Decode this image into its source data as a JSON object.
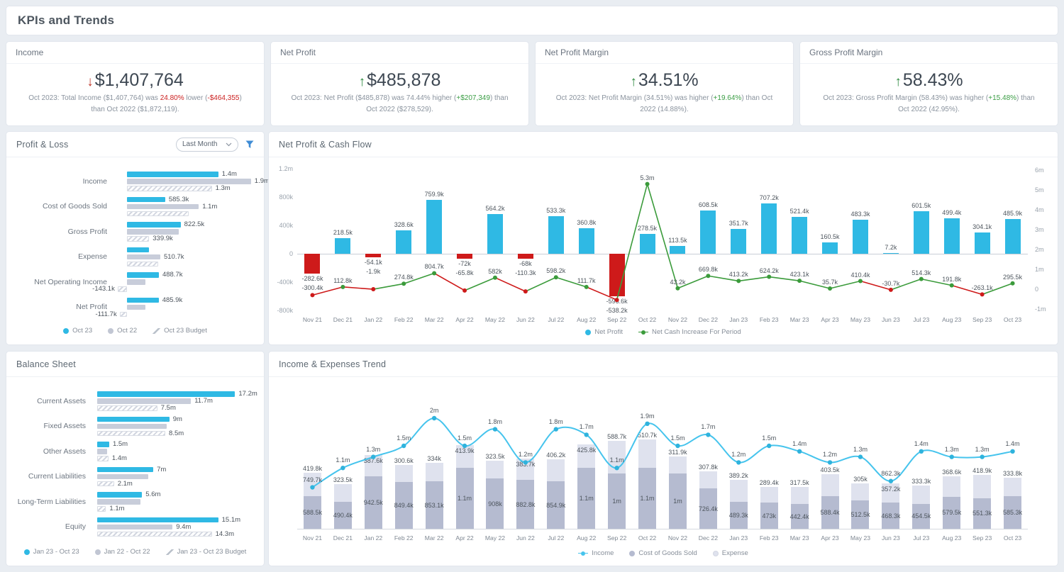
{
  "page": {
    "title": "KPIs and Trends"
  },
  "colors": {
    "bar_blue": "#2fb9e4",
    "bar_gray": "#c8cdda",
    "neg_red": "#ce1a1a",
    "line_green": "#3b9b3b",
    "line_blue": "#46c4ed",
    "cogs_gray": "#b5bbd0",
    "expense_gray": "#dfe2ee",
    "kpi_up": "#2e8b40",
    "kpi_down": "#c0392b",
    "filter_blue": "#3f8cd5"
  },
  "kpis": [
    {
      "title": "Income",
      "direction": "down",
      "value": "$1,407,764",
      "desc": [
        {
          "t": "Oct 2023: Total Income ($1,407,764) was "
        },
        {
          "t": "24.80%",
          "c": "neg"
        },
        {
          "t": " lower ("
        },
        {
          "t": "-$464,355",
          "c": "neg"
        },
        {
          "t": ") than Oct 2022 ($1,872,119)."
        }
      ]
    },
    {
      "title": "Net Profit",
      "direction": "up",
      "value": "$485,878",
      "desc": [
        {
          "t": "Oct 2023: Net Profit ($485,878) was 74.44% higher ("
        },
        {
          "t": "+$207,349",
          "c": "pos"
        },
        {
          "t": ") than Oct 2022 ($278,529)."
        }
      ]
    },
    {
      "title": "Net Profit Margin",
      "direction": "up",
      "value": "34.51%",
      "desc": [
        {
          "t": "Oct 2023: Net Profit Margin (34.51%) was higher ("
        },
        {
          "t": "+19.64%",
          "c": "pos"
        },
        {
          "t": ") than Oct 2022 (14.88%)."
        }
      ]
    },
    {
      "title": "Gross Profit Margin",
      "direction": "up",
      "value": "58.43%",
      "desc": [
        {
          "t": "Oct 2023: Gross Profit Margin (58.43%) was higher ("
        },
        {
          "t": "+15.48%",
          "c": "pos"
        },
        {
          "t": ") than Oct 2022 (42.95%)."
        }
      ]
    }
  ],
  "pnl": {
    "title": "Profit & Loss",
    "dropdown_value": "Last Month",
    "legend": [
      "Oct 23",
      "Oct 22",
      "Oct 23 Budget"
    ]
  },
  "cashflow": {
    "title": "Net Profit & Cash Flow",
    "legend": [
      "Net Profit",
      "Net Cash Increase For Period"
    ]
  },
  "bs": {
    "title": "Balance Sheet",
    "legend": [
      "Jan 23 - Oct 23",
      "Jan 22 - Oct 22",
      "Jan 23 - Oct 23 Budget"
    ]
  },
  "trend": {
    "title": "Income & Expenses Trend",
    "legend": [
      "Income",
      "Cost of Goods Sold",
      "Expense"
    ]
  },
  "chart_data": [
    {
      "id": "pnl",
      "type": "bar",
      "orientation": "horizontal",
      "unit": "thousands",
      "series_names": [
        "Oct 23",
        "Oct 22",
        "Oct 23 Budget"
      ],
      "rows": [
        {
          "label": "Income",
          "values": [
            1400,
            1900,
            1300
          ],
          "labels": [
            "1.4m",
            "1.9m",
            "1.3m"
          ]
        },
        {
          "label": "Cost of Goods Sold",
          "values": [
            585.3,
            1100,
            950
          ],
          "labels": [
            "585.3k",
            "1.1m",
            ""
          ]
        },
        {
          "label": "Gross Profit",
          "values": [
            822.5,
            790,
            339.9
          ],
          "labels": [
            "822.5k",
            "",
            "339.9k"
          ]
        },
        {
          "label": "Expense",
          "values": [
            333.8,
            510.7,
            480
          ],
          "labels": [
            "",
            "510.7k",
            ""
          ]
        },
        {
          "label": "Net Operating Income",
          "values": [
            488.7,
            280,
            -143.1
          ],
          "labels": [
            "488.7k",
            "",
            "-143.1k"
          ]
        },
        {
          "label": "Net Profit",
          "values": [
            485.9,
            278.5,
            -111.7
          ],
          "labels": [
            "485.9k",
            "",
            "-111.7k"
          ]
        }
      ]
    },
    {
      "id": "cashflow",
      "type": "bar+line",
      "unit": "thousands",
      "categories": [
        "Nov 21",
        "Dec 21",
        "Jan 22",
        "Feb 22",
        "Mar 22",
        "Apr 22",
        "May 22",
        "Jun 22",
        "Jul 22",
        "Aug 22",
        "Sep 22",
        "Oct 22",
        "Nov 22",
        "Dec 22",
        "Jan 23",
        "Feb 23",
        "Mar 23",
        "Apr 23",
        "May 23",
        "Jun 23",
        "Jul 23",
        "Aug 23",
        "Sep 23",
        "Oct 23"
      ],
      "bar_series": "Net Profit",
      "bar_values": [
        -282.6,
        218.5,
        -54.1,
        328.6,
        759.9,
        -72,
        564.2,
        -68,
        533.3,
        360.8,
        -596.6,
        278.5,
        113.5,
        608.5,
        351.7,
        707.2,
        521.4,
        160.5,
        483.3,
        7.2,
        601.5,
        499.4,
        304.1,
        485.9
      ],
      "bar_labels": [
        "-282.6k",
        "218.5k",
        "-54.1k",
        "328.6k",
        "759.9k",
        "-72k",
        "564.2k",
        "-68k",
        "533.3k",
        "360.8k",
        "-596.6k",
        "278.5k",
        "113.5k",
        "608.5k",
        "351.7k",
        "707.2k",
        "521.4k",
        "160.5k",
        "483.3k",
        "7.2k",
        "601.5k",
        "499.4k",
        "304.1k",
        "485.9k"
      ],
      "line_series": "Net Cash Increase For Period",
      "line_values": [
        -300.4,
        112.8,
        -1.9,
        274.8,
        804.7,
        -65.8,
        582,
        -110.3,
        598.2,
        111.7,
        -538.2,
        5300,
        43.2,
        669.8,
        413.2,
        624.2,
        423.1,
        35.7,
        410.4,
        -30.7,
        514.3,
        191.8,
        -263.1,
        295.5
      ],
      "line_labels": [
        "-300.4k",
        "112.8k",
        "-1.9k",
        "274.8k",
        "804.7k",
        "-65.8k",
        "582k",
        "-110.3k",
        "598.2k",
        "111.7k",
        "-538.2k",
        "5.3m",
        "43.2k",
        "669.8k",
        "413.2k",
        "624.2k",
        "423.1k",
        "35.7k",
        "410.4k",
        "-30.7k",
        "514.3k",
        "191.8k",
        "-263.1k",
        "295.5k"
      ],
      "left_axis": {
        "ticks": [
          1200,
          800,
          400,
          0,
          -400,
          -800
        ],
        "labels": [
          "1.2m",
          "800k",
          "400k",
          "0",
          "-400k",
          "-800k"
        ]
      },
      "right_axis": {
        "ticks": [
          6000,
          5000,
          4000,
          3000,
          2000,
          1000,
          0,
          -1000
        ],
        "labels": [
          "6m",
          "5m",
          "4m",
          "3m",
          "2m",
          "1m",
          "0",
          "-1m"
        ]
      }
    },
    {
      "id": "bs",
      "type": "bar",
      "orientation": "horizontal",
      "unit": "millions",
      "series_names": [
        "Jan 23 - Oct 23",
        "Jan 22 - Oct 22",
        "Jan 23 - Oct 23 Budget"
      ],
      "rows": [
        {
          "label": "Current Assets",
          "values": [
            17.2,
            11.7,
            7.5
          ],
          "labels": [
            "17.2m",
            "11.7m",
            "7.5m"
          ]
        },
        {
          "label": "Fixed Assets",
          "values": [
            9,
            8.7,
            8.5
          ],
          "labels": [
            "9m",
            "",
            "8.5m"
          ]
        },
        {
          "label": "Other Assets",
          "values": [
            1.5,
            1.2,
            1.4
          ],
          "labels": [
            "1.5m",
            "",
            "1.4m"
          ]
        },
        {
          "label": "Current Liabilities",
          "values": [
            7,
            6.4,
            2.1
          ],
          "labels": [
            "7m",
            "",
            "2.1m"
          ]
        },
        {
          "label": "Long-Term Liabilities",
          "values": [
            5.6,
            5.4,
            1.1
          ],
          "labels": [
            "5.6m",
            "",
            "1.1m"
          ]
        },
        {
          "label": "Equity",
          "values": [
            15.1,
            9.4,
            14.3
          ],
          "labels": [
            "15.1m",
            "9.4m",
            "14.3m"
          ]
        }
      ]
    },
    {
      "id": "trend",
      "type": "stacked-bar+line",
      "unit": "thousands",
      "categories": [
        "Nov 21",
        "Dec 21",
        "Jan 22",
        "Feb 22",
        "Mar 22",
        "Apr 22",
        "May 22",
        "Jun 22",
        "Jul 22",
        "Aug 22",
        "Sep 22",
        "Oct 22",
        "Nov 22",
        "Dec 22",
        "Jan 23",
        "Feb 23",
        "Mar 23",
        "Apr 23",
        "May 23",
        "Jun 23",
        "Jul 23",
        "Aug 23",
        "Sep 23",
        "Oct 23"
      ],
      "series": [
        {
          "name": "Cost of Goods Sold",
          "values": [
            588.5,
            490.4,
            942.5,
            849.4,
            853.1,
            1100,
            908,
            882.8,
            854.9,
            1100,
            1000,
            1100,
            1000,
            726.4,
            489.3,
            473,
            442.4,
            588.4,
            512.5,
            468.3,
            454.5,
            579.5,
            551.3,
            585.3
          ],
          "labels": [
            "588.5k",
            "490.4k",
            "942.5k",
            "849.4k",
            "853.1k",
            "1.1m",
            "908k",
            "882.8k",
            "854.9k",
            "1.1m",
            "1m",
            "1.1m",
            "1m",
            "726.4k",
            "489.3k",
            "473k",
            "442.4k",
            "588.4k",
            "512.5k",
            "468.3k",
            "454.5k",
            "579.5k",
            "551.3k",
            "585.3k"
          ]
        },
        {
          "name": "Expense",
          "values": [
            419.8,
            323.5,
            387.6,
            300.6,
            334,
            413.9,
            323.5,
            383.7,
            406.2,
            425.8,
            588.7,
            510.7,
            311.9,
            307.8,
            389.2,
            289.4,
            317.5,
            403.5,
            305,
            357.2,
            333.3,
            368.6,
            418.9,
            333.8
          ],
          "labels": [
            "419.8k",
            "323.5k",
            "387.6k",
            "300.6k",
            "334k",
            "413.9k",
            "323.5k",
            "383.7k",
            "406.2k",
            "425.8k",
            "588.7k",
            "510.7k",
            "311.9k",
            "307.8k",
            "389.2k",
            "289.4k",
            "317.5k",
            "403.5k",
            "305k",
            "357.2k",
            "333.3k",
            "368.6k",
            "418.9k",
            "333.8k"
          ]
        },
        {
          "name": "Income",
          "role": "line",
          "values": [
            749.7,
            1100,
            1300,
            1500,
            2000,
            1500,
            1800,
            1200,
            1800,
            1700,
            1100,
            1900,
            1500,
            1700,
            1200,
            1500,
            1400,
            1200,
            1300,
            862.3,
            1400,
            1300,
            1300,
            1400
          ],
          "labels": [
            "749.7k",
            "1.1m",
            "1.3m",
            "1.5m",
            "2m",
            "1.5m",
            "1.8m",
            "1.2m",
            "1.8m",
            "1.7m",
            "1.1m",
            "1.9m",
            "1.5m",
            "1.7m",
            "1.2m",
            "1.5m",
            "1.4m",
            "1.2m",
            "1.3m",
            "862.3k",
            "1.4m",
            "1.3m",
            "1.3m",
            "1.4m"
          ]
        }
      ]
    }
  ]
}
